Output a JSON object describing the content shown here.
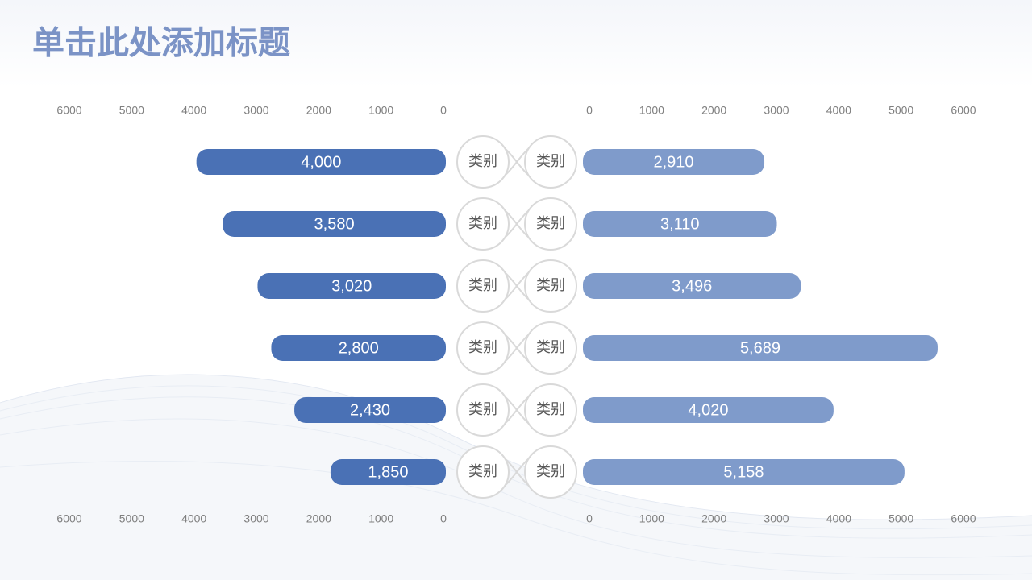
{
  "title": "单击此处添加标题",
  "chart_data": {
    "type": "butterfly",
    "categories": [
      "类别",
      "类别",
      "类别",
      "类别",
      "类别",
      "类别"
    ],
    "series": [
      {
        "color": "#4a71b5",
        "values": [
          4000,
          3580,
          3020,
          2800,
          2430,
          1850
        ],
        "value_labels": [
          "4,000",
          "3,580",
          "3,020",
          "2,800",
          "2,430",
          "1,850"
        ]
      },
      {
        "color": "#7f9bcb",
        "values": [
          2910,
          3110,
          3496,
          5689,
          4020,
          5158
        ],
        "value_labels": [
          "2,910",
          "3,110",
          "3,496",
          "5,689",
          "4,020",
          "5,158"
        ]
      }
    ],
    "xlim": [
      0,
      6000
    ],
    "xticks": [
      0,
      1000,
      2000,
      3000,
      4000,
      5000,
      6000
    ]
  }
}
